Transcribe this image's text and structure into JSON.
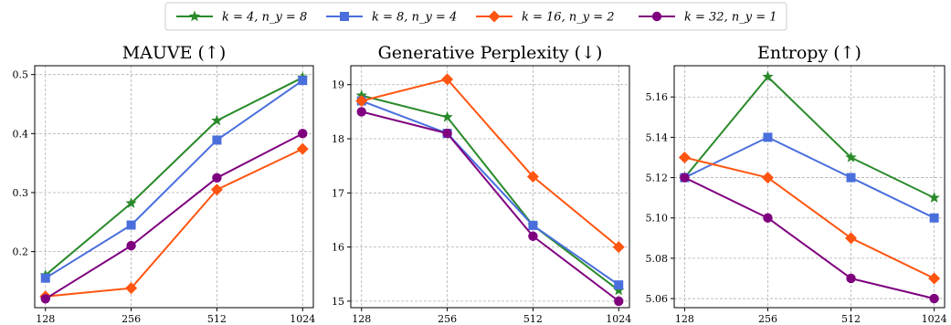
{
  "colors": {
    "k4": "#2a8a2a",
    "k8": "#4a6fdc",
    "k16": "#ff5511",
    "k32": "#7f007f"
  },
  "legend": {
    "position": "top-center",
    "entries": [
      {
        "key": "k4",
        "label": "k = 4, n_y = 8",
        "marker": "star"
      },
      {
        "key": "k8",
        "label": "k = 8, n_y = 4",
        "marker": "square"
      },
      {
        "key": "k16",
        "label": "k = 16, n_y = 2",
        "marker": "diamond"
      },
      {
        "key": "k32",
        "label": "k = 32, n_y = 1",
        "marker": "circle"
      }
    ]
  },
  "chart_data": [
    {
      "type": "line",
      "title": "MAUVE (↑)",
      "categories": [
        "128",
        "256",
        "512",
        "1024"
      ],
      "yticks": [
        0.2,
        0.3,
        0.4,
        0.5
      ],
      "ytick_labels": [
        "0.2",
        "0.3",
        "0.4",
        "0.5"
      ],
      "ylim": [
        0.105,
        0.515
      ],
      "grid": true,
      "series": [
        {
          "name": "k = 4, n_y = 8",
          "key": "k4",
          "values": [
            0.16,
            0.282,
            0.422,
            0.495
          ]
        },
        {
          "name": "k = 8, n_y = 4",
          "key": "k8",
          "values": [
            0.155,
            0.245,
            0.389,
            0.49
          ]
        },
        {
          "name": "k = 16, n_y = 2",
          "key": "k16",
          "values": [
            0.124,
            0.138,
            0.305,
            0.374
          ]
        },
        {
          "name": "k = 32, n_y = 1",
          "key": "k32",
          "values": [
            0.12,
            0.21,
            0.325,
            0.4
          ]
        }
      ]
    },
    {
      "type": "line",
      "title": "Generative Perplexity (↓)",
      "categories": [
        "128",
        "256",
        "512",
        "1024"
      ],
      "yticks": [
        15,
        16,
        17,
        18,
        19
      ],
      "ytick_labels": [
        "15",
        "16",
        "17",
        "18",
        "19"
      ],
      "ylim": [
        14.88,
        19.35
      ],
      "grid": true,
      "series": [
        {
          "name": "k = 4, n_y = 8",
          "key": "k4",
          "values": [
            18.8,
            18.4,
            16.4,
            15.2
          ]
        },
        {
          "name": "k = 8, n_y = 4",
          "key": "k8",
          "values": [
            18.7,
            18.1,
            16.4,
            15.3
          ]
        },
        {
          "name": "k = 16, n_y = 2",
          "key": "k16",
          "values": [
            18.7,
            19.1,
            17.3,
            16.0
          ]
        },
        {
          "name": "k = 32, n_y = 1",
          "key": "k32",
          "values": [
            18.5,
            18.1,
            16.2,
            15.0
          ]
        }
      ]
    },
    {
      "type": "line",
      "title": "Entropy (↑)",
      "categories": [
        "128",
        "256",
        "512",
        "1024"
      ],
      "yticks": [
        5.06,
        5.08,
        5.1,
        5.12,
        5.14,
        5.16
      ],
      "ytick_labels": [
        "5.06",
        "5.08",
        "5.10",
        "5.12",
        "5.14",
        "5.16"
      ],
      "ylim": [
        5.0555,
        5.1755
      ],
      "grid": true,
      "series": [
        {
          "name": "k = 4, n_y = 8",
          "key": "k4",
          "values": [
            5.12,
            5.17,
            5.13,
            5.11
          ]
        },
        {
          "name": "k = 8, n_y = 4",
          "key": "k8",
          "values": [
            5.12,
            5.14,
            5.12,
            5.1
          ]
        },
        {
          "name": "k = 16, n_y = 2",
          "key": "k16",
          "values": [
            5.13,
            5.12,
            5.09,
            5.07
          ]
        },
        {
          "name": "k = 32, n_y = 1",
          "key": "k32",
          "values": [
            5.12,
            5.1,
            5.07,
            5.06
          ]
        }
      ]
    }
  ]
}
